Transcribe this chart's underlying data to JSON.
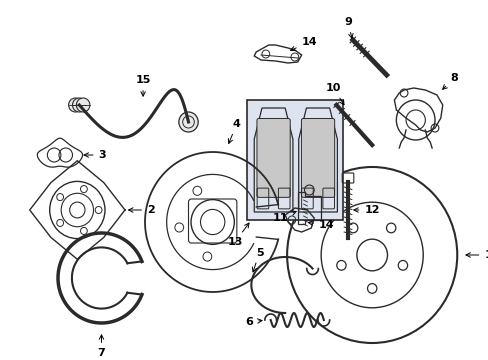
{
  "background_color": "#ffffff",
  "line_color": "#2a2a2a",
  "fig_w": 4.89,
  "fig_h": 3.6,
  "dpi": 100
}
